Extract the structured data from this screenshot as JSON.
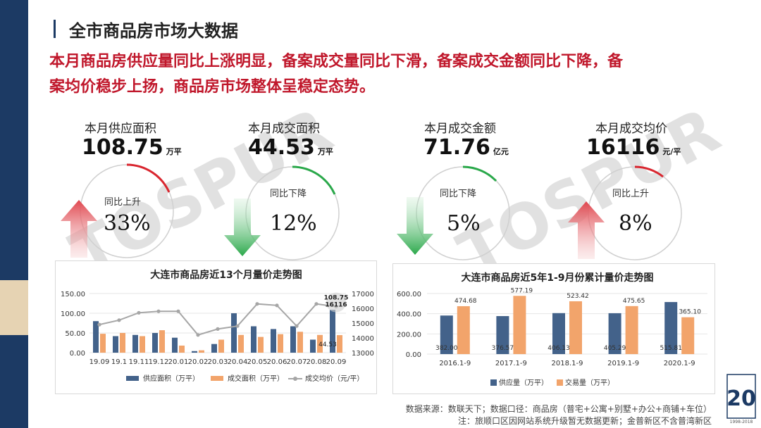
{
  "page": {
    "title": "全市商品房市场大数据",
    "headline_line1": "本月商品房供应量同比上涨明显，备案成交量同比下滑，备案成交金额同比下降，备",
    "headline_line2": "案均价稳步上扬，商品房市场整体呈稳定态势。",
    "watermark": "TOSPUR"
  },
  "kpis": [
    {
      "label": "本月供应面积",
      "value": "108.75",
      "unit": "万平",
      "change_label": "同比上升",
      "change_pct": "33%",
      "direction": "up",
      "ring_color": "#d9262f",
      "arrow_color": "#e0464e"
    },
    {
      "label": "本月成交面积",
      "value": "44.53",
      "unit": "万平",
      "change_label": "同比下降",
      "change_pct": "12%",
      "direction": "down",
      "ring_color": "#2aa84a",
      "arrow_color": "#2aa84a"
    },
    {
      "label": "本月成交金额",
      "value": "71.76",
      "unit": "亿元",
      "change_label": "同比下降",
      "change_pct": "5%",
      "direction": "down",
      "ring_color": "#2aa84a",
      "arrow_color": "#2aa84a"
    },
    {
      "label": "本月成交均价",
      "value": "16116",
      "unit": "元/平",
      "change_label": "同比上升",
      "change_pct": "8%",
      "direction": "up",
      "ring_color": "#d9262f",
      "arrow_color": "#e0464e"
    }
  ],
  "chart_data": [
    {
      "type": "bar",
      "title": "大连市商品房近13个月量价走势图",
      "categories": [
        "19.09",
        "19.1",
        "19.11",
        "19.12",
        "20.01",
        "20.02",
        "20.03",
        "20.04",
        "20.05",
        "20.06",
        "20.07",
        "20.08",
        "20.09"
      ],
      "series": [
        {
          "name": "供应面积（万平）",
          "type": "bar",
          "axis": "left",
          "color": "#43628a",
          "values": [
            80,
            42,
            45,
            50,
            38,
            4,
            22,
            100,
            67,
            60,
            67,
            33,
            108.75
          ]
        },
        {
          "name": "成交面积（万平）",
          "type": "bar",
          "axis": "left",
          "color": "#f2a46b",
          "values": [
            48,
            50,
            42,
            57,
            18,
            6,
            33,
            45,
            40,
            47,
            53,
            45,
            44.53
          ]
        },
        {
          "name": "成交均价（元/平）",
          "type": "line",
          "axis": "right",
          "color": "#a6a6a6",
          "values": [
            14900,
            15200,
            15700,
            15800,
            15800,
            14200,
            14600,
            14800,
            16300,
            16200,
            14800,
            16300,
            16116
          ]
        }
      ],
      "y_left": {
        "ticks": [
          "0.00",
          "50.00",
          "100.00",
          "150.00"
        ],
        "ylim": [
          0,
          150
        ]
      },
      "y_right": {
        "ticks": [
          "13000",
          "14000",
          "15000",
          "16000",
          "17000"
        ],
        "ylim": [
          13000,
          17000
        ]
      },
      "annotations": [
        "108.75",
        "16116",
        "44.53"
      ],
      "legend": [
        "供应面积（万平）",
        "成交面积（万平）",
        "成交均价（元/平）"
      ]
    },
    {
      "type": "bar",
      "title": "大连市商品房近5年1-9月份累计量价走势图",
      "categories": [
        "2016.1-9",
        "2017.1-9",
        "2018.1-9",
        "2019.1-9",
        "2020.1-9"
      ],
      "series": [
        {
          "name": "供应量（万平）",
          "color": "#43628a",
          "values": [
            382.0,
            376.57,
            406.13,
            405.29,
            515.81
          ]
        },
        {
          "name": "交易量（万平）",
          "color": "#f2a46b",
          "values": [
            474.68,
            577.19,
            523.42,
            475.65,
            365.1
          ]
        }
      ],
      "supply_labels": [
        "382.00",
        "376.57",
        "406.13",
        "405.29",
        "515.81"
      ],
      "deal_labels": [
        "474.68",
        "577.19",
        "523.42",
        "475.65",
        "365.10"
      ],
      "y_ticks": [
        "0.00",
        "200.00",
        "400.00",
        "600.00"
      ],
      "ylim": [
        0,
        600
      ],
      "legend": [
        "供应量（万平）",
        "交易量（万平）"
      ]
    }
  ],
  "footnotes": {
    "line1": "数据来源：数联天下；数据口径：商品房（普宅+公寓+别墅+办公+商铺+车位）",
    "line2": "注：旅顺口区因网站系统升级暂无数据更新；金普新区不含普湾新区"
  },
  "logo": {
    "number": "20",
    "caption": "1998-2018"
  }
}
